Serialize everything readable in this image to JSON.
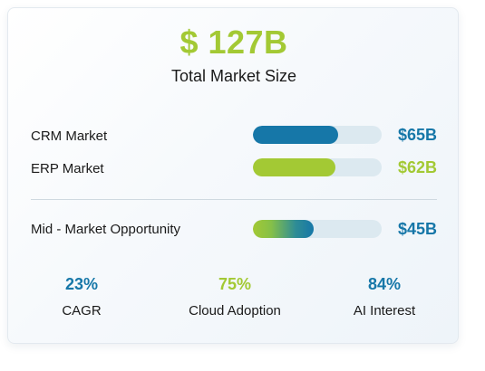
{
  "summary": {
    "headline": "$ 127B",
    "subheading": "Total Market Size"
  },
  "markets": [
    {
      "label": "CRM Market",
      "value": "$65B",
      "fill_pct": 66,
      "color": "#1677a8"
    },
    {
      "label": "ERP Market",
      "value": "$62B",
      "fill_pct": 64,
      "color": "#a3c934"
    }
  ],
  "opportunity": {
    "label": "Mid - Market Opportunity",
    "value": "$45B",
    "fill_pct": 47,
    "color": "#1677a8"
  },
  "stats": [
    {
      "value": "23%",
      "label": "CAGR",
      "color": "#1677a8"
    },
    {
      "value": "75%",
      "label": "Cloud Adoption",
      "color": "#a3c934"
    },
    {
      "value": "84%",
      "label": "AI Interest",
      "color": "#1677a8"
    }
  ],
  "colors": {
    "accent_green": "#a3c934",
    "accent_blue": "#1677a8",
    "track": "#dce9f0"
  }
}
